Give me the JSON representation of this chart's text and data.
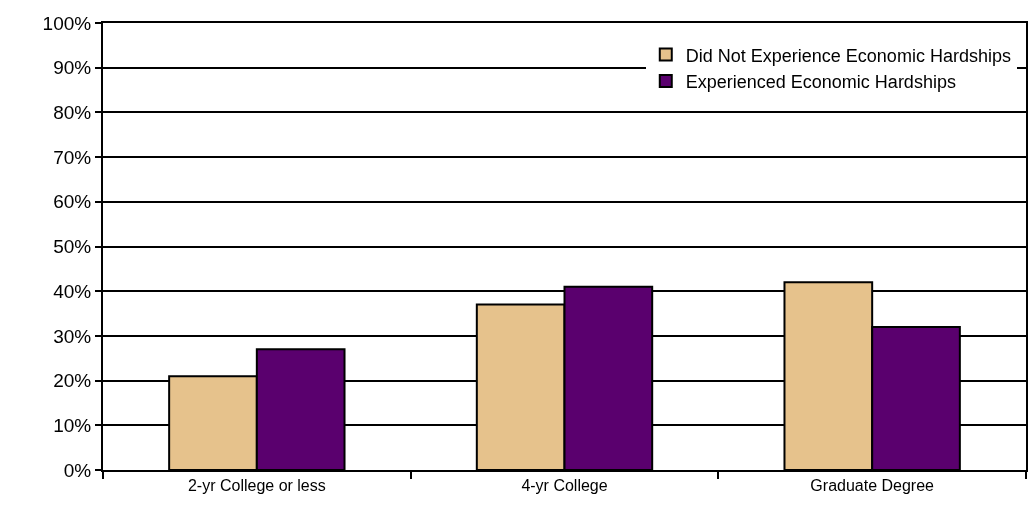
{
  "chart_data": {
    "type": "bar",
    "categories": [
      "2-yr College or less",
      "4-yr College",
      "Graduate Degree"
    ],
    "series": [
      {
        "name": "Did Not Experience Economic Hardships",
        "color": "#e6c28c",
        "values": [
          21,
          37,
          42
        ]
      },
      {
        "name": "Experienced Economic Hardships",
        "color": "#5a006e",
        "values": [
          27,
          41,
          32
        ]
      }
    ],
    "ylim": [
      0,
      100
    ],
    "yticks": [
      {
        "value": 0,
        "label": "0%"
      },
      {
        "value": 10,
        "label": "10%"
      },
      {
        "value": 20,
        "label": "20%"
      },
      {
        "value": 30,
        "label": "30%"
      },
      {
        "value": 40,
        "label": "40%"
      },
      {
        "value": 50,
        "label": "50%"
      },
      {
        "value": 60,
        "label": "60%"
      },
      {
        "value": 70,
        "label": "70%"
      },
      {
        "value": 80,
        "label": "80%"
      },
      {
        "value": 90,
        "label": "90%"
      },
      {
        "value": 100,
        "label": "100%"
      }
    ],
    "grid": "y",
    "legend": "top right"
  }
}
